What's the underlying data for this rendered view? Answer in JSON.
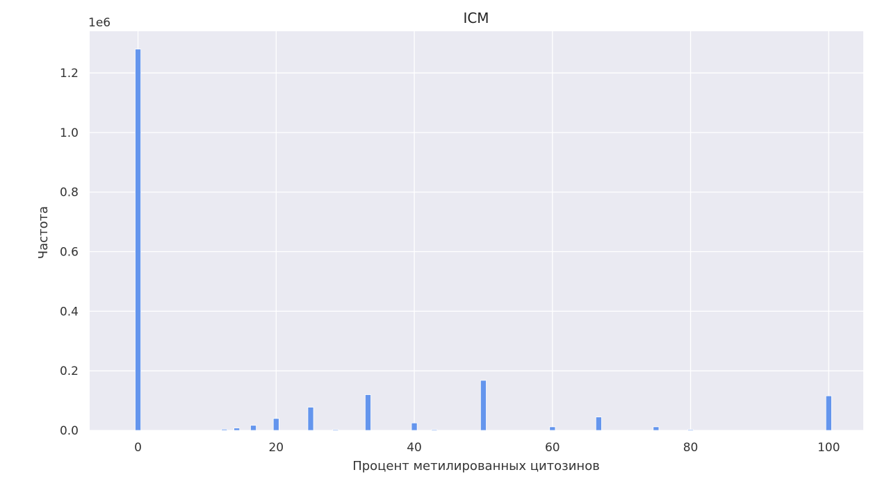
{
  "chart_data": {
    "type": "bar",
    "title": "ICM",
    "xlabel": "Процент метилированных цитозинов",
    "ylabel": "Частота",
    "y_offset_label": "1e6",
    "xlim": [
      -7,
      105
    ],
    "ylim": [
      0,
      1.34
    ],
    "xticks": [
      0,
      20,
      40,
      60,
      80,
      100
    ],
    "xtick_labels": [
      "0",
      "20",
      "40",
      "60",
      "80",
      "100"
    ],
    "yticks": [
      0.0,
      0.2,
      0.4,
      0.6,
      0.8,
      1.0,
      1.2
    ],
    "ytick_labels": [
      "0.0",
      "0.2",
      "0.4",
      "0.6",
      "0.8",
      "1.0",
      "1.2"
    ],
    "grid": true,
    "bar_color": "#6495ed",
    "background": "#eaeaf2",
    "bin_width": 1,
    "x": [
      0,
      12.5,
      14.3,
      16.7,
      20,
      25,
      28.6,
      33.3,
      40,
      42.9,
      50,
      60,
      66.7,
      75,
      80,
      100
    ],
    "values": [
      1.28,
      0.004,
      0.008,
      0.017,
      0.04,
      0.078,
      0.003,
      0.12,
      0.025,
      0.003,
      0.168,
      0.012,
      0.045,
      0.012,
      0.003,
      0.116
    ]
  }
}
